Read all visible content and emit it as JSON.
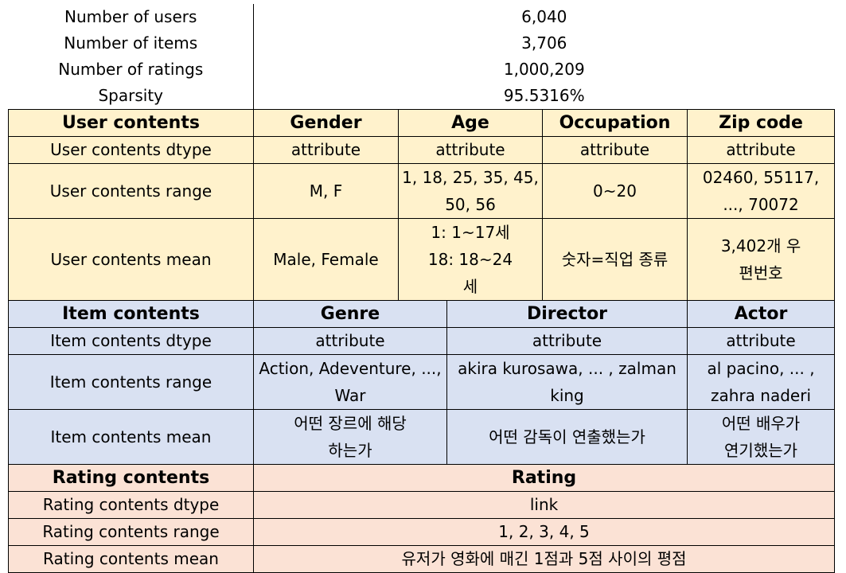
{
  "summary": [
    {
      "label": "Number of users",
      "value": "6,040"
    },
    {
      "label": "Number of items",
      "value": "3,706"
    },
    {
      "label": "Number of ratings",
      "value": "1,000,209"
    },
    {
      "label": "Sparsity",
      "value": "95.5316%"
    }
  ],
  "user": {
    "header": [
      "User contents",
      "Gender",
      "Age",
      "Occupation",
      "Zip code"
    ],
    "dtype": [
      "User contents dtype",
      "attribute",
      "attribute",
      "attribute",
      "attribute"
    ],
    "range": [
      "User contents range",
      "M, F",
      "1, 18, 25, 35, 45, 50, 56",
      "0~20",
      "02460, 55117, ..., 70072"
    ],
    "mean": [
      "User contents mean",
      "Male, Female",
      "1: 1~17세 18: 18~24세",
      "숫자=직업 종류",
      "3,402개 우편번호"
    ]
  },
  "item": {
    "header": [
      "Item contents",
      "Genre",
      "Director",
      "Actor"
    ],
    "dtype": [
      "Item contents dtype",
      "attribute",
      "attribute",
      "attribute"
    ],
    "range": [
      "Item contents range",
      "Action, Adeventure, ..., War",
      "akira kurosawa, ... , zalman king",
      "al pacino, ... , zahra naderi"
    ],
    "mean": [
      "Item contents mean",
      "어떤 장르에 해당하는가",
      "어떤 감독이 연출했는가",
      "어떤 배우가 연기했는가"
    ]
  },
  "rating": {
    "header": [
      "Rating contents",
      "Rating"
    ],
    "dtype": [
      "Rating contents dtype",
      "link"
    ],
    "range": [
      "Rating contents range",
      "1, 2, 3, 4, 5"
    ],
    "mean": [
      "Rating contents mean",
      "유저가 영화에 매긴 1점과 5점 사이의 평점"
    ]
  },
  "colors": {
    "user_section": "#fff2cc",
    "item_section": "#d9e1f2",
    "rating_section": "#fbe2d5"
  }
}
